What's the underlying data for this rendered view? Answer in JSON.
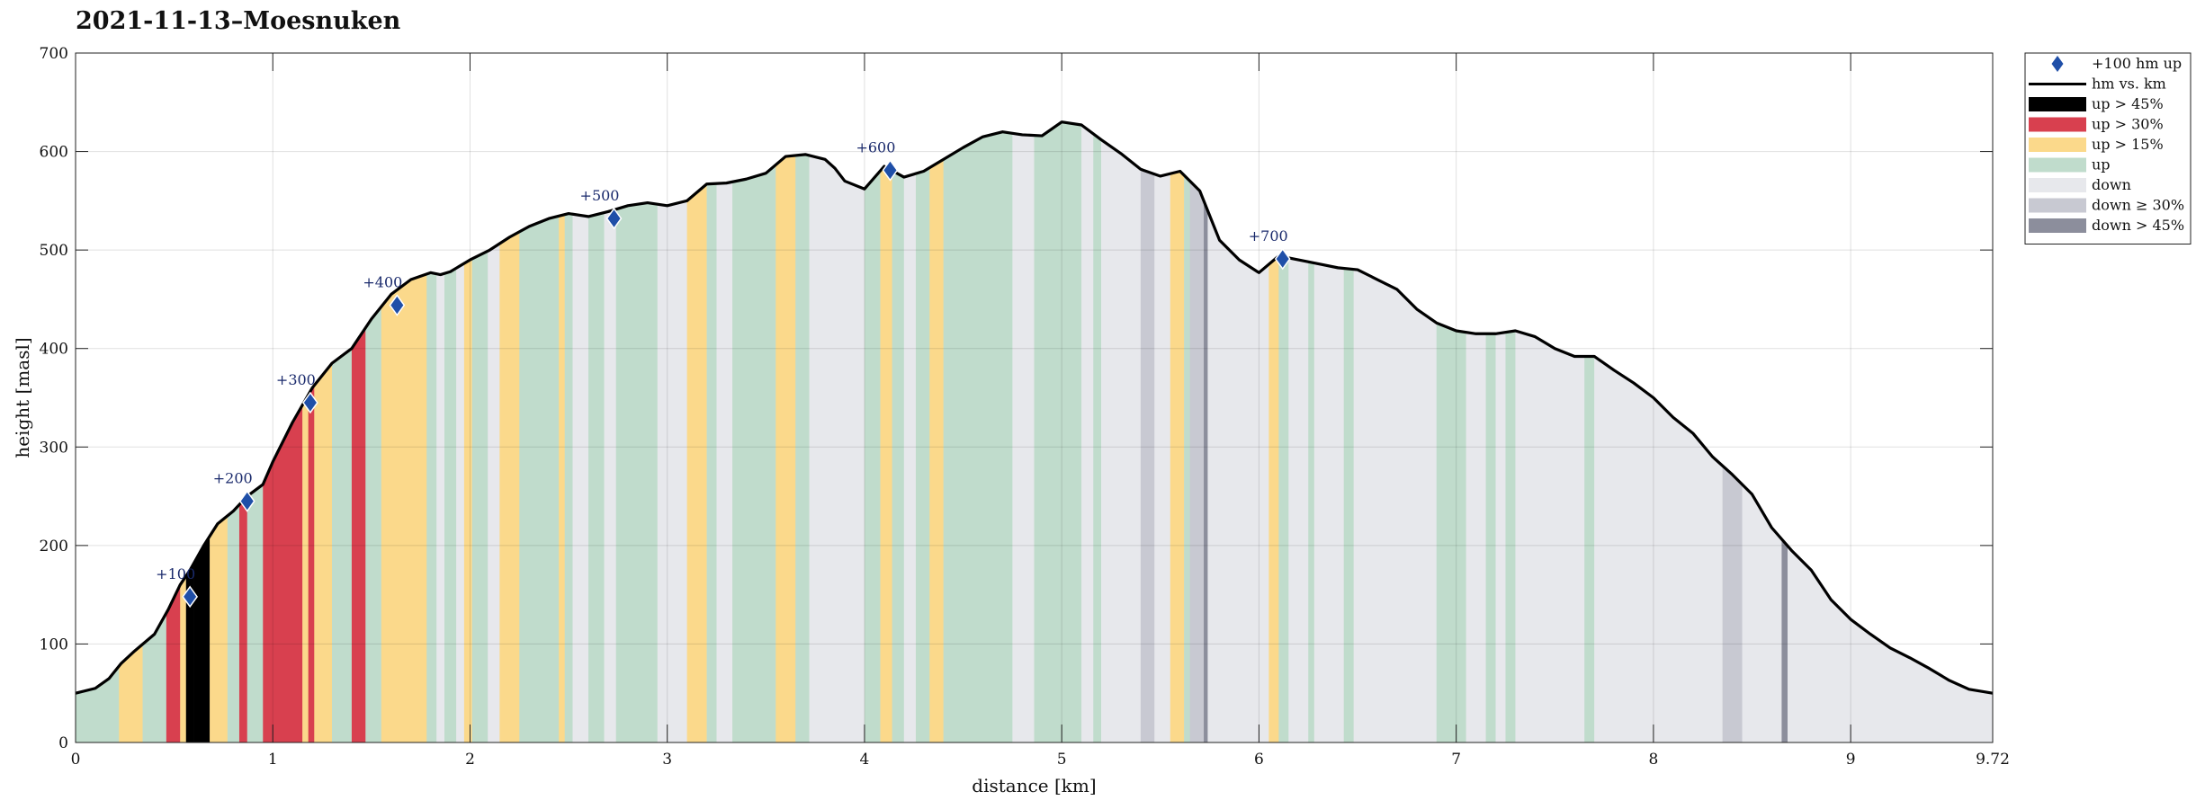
{
  "page": {
    "title": "2021-11-13–Moesnuken"
  },
  "chart_data": {
    "type": "area",
    "title": "2021-11-13–Moesnuken",
    "xlabel": "distance [km]",
    "ylabel": "height [masl]",
    "xlim": [
      0,
      9.72
    ],
    "ylim": [
      0,
      700
    ],
    "xticks": [
      0,
      1,
      2,
      3,
      4,
      5,
      6,
      7,
      8,
      9,
      9.72
    ],
    "xtick_labels": [
      "0",
      "1",
      "2",
      "3",
      "4",
      "5",
      "6",
      "7",
      "8",
      "9",
      "9.72"
    ],
    "yticks": [
      0,
      100,
      200,
      300,
      400,
      500,
      600,
      700
    ],
    "ytick_labels": [
      "0",
      "100",
      "200",
      "300",
      "400",
      "500",
      "600",
      "700"
    ],
    "grid": true,
    "legend_position": "outside-right-top",
    "legend": [
      {
        "label": "+100 hm up",
        "kind": "marker",
        "color": "#1f4fa8"
      },
      {
        "label": "hm vs. km",
        "kind": "line",
        "color": "#000000"
      },
      {
        "label": "up > 45%",
        "kind": "patch",
        "color": "#000000"
      },
      {
        "label": "up > 30%",
        "kind": "patch",
        "color": "#d8404f"
      },
      {
        "label": "up > 15%",
        "kind": "patch",
        "color": "#fbd98b"
      },
      {
        "label": "up",
        "kind": "patch",
        "color": "#c0dccc"
      },
      {
        "label": "down",
        "kind": "patch",
        "color": "#e7e8ec"
      },
      {
        "label": "down ≥ 30%",
        "kind": "patch",
        "color": "#c8c9d2"
      },
      {
        "label": "down > 45%",
        "kind": "patch",
        "color": "#8c8e9c"
      }
    ],
    "category_colors": {
      "up45": "#000000",
      "up30": "#d8404f",
      "up15": "#fbd98b",
      "up": "#c0dccc",
      "down": "#e7e8ec",
      "down30": "#c8c9d2",
      "down45": "#8c8e9c"
    },
    "profile": {
      "x": [
        0,
        0.1,
        0.17,
        0.23,
        0.3,
        0.4,
        0.47,
        0.53,
        0.58,
        0.65,
        0.72,
        0.8,
        0.87,
        0.95,
        1.0,
        1.1,
        1.2,
        1.3,
        1.4,
        1.5,
        1.6,
        1.7,
        1.8,
        1.85,
        1.9,
        2.0,
        2.1,
        2.2,
        2.3,
        2.4,
        2.5,
        2.6,
        2.7,
        2.8,
        2.9,
        3.0,
        3.1,
        3.2,
        3.3,
        3.4,
        3.5,
        3.6,
        3.7,
        3.8,
        3.85,
        3.9,
        4.0,
        4.1,
        4.2,
        4.3,
        4.4,
        4.5,
        4.6,
        4.7,
        4.8,
        4.9,
        5.0,
        5.1,
        5.2,
        5.3,
        5.4,
        5.5,
        5.6,
        5.7,
        5.8,
        5.9,
        6.0,
        6.1,
        6.2,
        6.3,
        6.4,
        6.5,
        6.6,
        6.7,
        6.8,
        6.9,
        7.0,
        7.1,
        7.2,
        7.3,
        7.4,
        7.5,
        7.6,
        7.7,
        7.8,
        7.9,
        8.0,
        8.1,
        8.2,
        8.3,
        8.4,
        8.5,
        8.6,
        8.7,
        8.8,
        8.9,
        9.0,
        9.1,
        9.2,
        9.3,
        9.4,
        9.5,
        9.6,
        9.72
      ],
      "y": [
        50,
        55,
        65,
        80,
        93,
        110,
        135,
        160,
        175,
        200,
        222,
        235,
        250,
        262,
        285,
        325,
        360,
        385,
        400,
        430,
        455,
        470,
        477,
        475,
        478,
        490,
        500,
        513,
        524,
        532,
        537,
        534,
        539,
        545,
        548,
        545,
        550,
        567,
        568,
        572,
        578,
        595,
        597,
        592,
        583,
        570,
        562,
        585,
        574,
        580,
        592,
        604,
        615,
        620,
        617,
        616,
        630,
        627,
        612,
        598,
        582,
        575,
        580,
        560,
        510,
        490,
        477,
        494,
        490,
        486,
        482,
        480,
        470,
        460,
        440,
        426,
        418,
        415,
        415,
        418,
        412,
        400,
        392,
        392,
        378,
        365,
        350,
        330,
        314,
        290,
        272,
        252,
        218,
        195,
        175,
        145,
        125,
        110,
        96,
        86,
        75,
        63,
        54,
        50
      ]
    },
    "segments": [
      [
        0.0,
        0.22,
        "up"
      ],
      [
        0.22,
        0.34,
        "up15"
      ],
      [
        0.34,
        0.46,
        "up"
      ],
      [
        0.46,
        0.53,
        "up30"
      ],
      [
        0.53,
        0.56,
        "up15"
      ],
      [
        0.56,
        0.6,
        "up45"
      ],
      [
        0.6,
        0.68,
        "up45"
      ],
      [
        0.68,
        0.77,
        "up15"
      ],
      [
        0.77,
        0.83,
        "up"
      ],
      [
        0.83,
        0.87,
        "up30"
      ],
      [
        0.87,
        0.95,
        "up"
      ],
      [
        0.95,
        1.15,
        "up30"
      ],
      [
        1.15,
        1.18,
        "up15"
      ],
      [
        1.18,
        1.21,
        "up30"
      ],
      [
        1.21,
        1.3,
        "up15"
      ],
      [
        1.3,
        1.4,
        "up"
      ],
      [
        1.4,
        1.47,
        "up30"
      ],
      [
        1.47,
        1.55,
        "up"
      ],
      [
        1.55,
        1.78,
        "up15"
      ],
      [
        1.78,
        1.83,
        "up"
      ],
      [
        1.83,
        1.87,
        "down"
      ],
      [
        1.87,
        1.93,
        "up"
      ],
      [
        1.93,
        1.97,
        "down"
      ],
      [
        1.97,
        2.01,
        "up15"
      ],
      [
        2.01,
        2.09,
        "up"
      ],
      [
        2.09,
        2.15,
        "down"
      ],
      [
        2.15,
        2.25,
        "up15"
      ],
      [
        2.25,
        2.45,
        "up"
      ],
      [
        2.45,
        2.48,
        "up15"
      ],
      [
        2.48,
        2.52,
        "up"
      ],
      [
        2.52,
        2.6,
        "down"
      ],
      [
        2.6,
        2.68,
        "up"
      ],
      [
        2.68,
        2.74,
        "down"
      ],
      [
        2.74,
        2.95,
        "up"
      ],
      [
        2.95,
        3.1,
        "down"
      ],
      [
        3.1,
        3.2,
        "up15"
      ],
      [
        3.2,
        3.25,
        "up"
      ],
      [
        3.25,
        3.33,
        "down"
      ],
      [
        3.33,
        3.55,
        "up"
      ],
      [
        3.55,
        3.65,
        "up15"
      ],
      [
        3.65,
        3.72,
        "up"
      ],
      [
        3.72,
        4.0,
        "down"
      ],
      [
        4.0,
        4.08,
        "up"
      ],
      [
        4.08,
        4.14,
        "up15"
      ],
      [
        4.14,
        4.2,
        "up"
      ],
      [
        4.2,
        4.26,
        "down"
      ],
      [
        4.26,
        4.33,
        "up"
      ],
      [
        4.33,
        4.4,
        "up15"
      ],
      [
        4.4,
        4.75,
        "up"
      ],
      [
        4.75,
        4.86,
        "down"
      ],
      [
        4.86,
        5.1,
        "up"
      ],
      [
        5.1,
        5.16,
        "down"
      ],
      [
        5.16,
        5.2,
        "up"
      ],
      [
        5.2,
        5.4,
        "down"
      ],
      [
        5.4,
        5.47,
        "down30"
      ],
      [
        5.47,
        5.55,
        "down"
      ],
      [
        5.55,
        5.62,
        "up15"
      ],
      [
        5.62,
        5.65,
        "up"
      ],
      [
        5.65,
        5.72,
        "down30"
      ],
      [
        5.72,
        5.74,
        "down45"
      ],
      [
        5.74,
        6.05,
        "down"
      ],
      [
        6.05,
        6.1,
        "up15"
      ],
      [
        6.1,
        6.15,
        "up"
      ],
      [
        6.15,
        6.25,
        "down"
      ],
      [
        6.25,
        6.28,
        "up"
      ],
      [
        6.28,
        6.43,
        "down"
      ],
      [
        6.43,
        6.48,
        "up"
      ],
      [
        6.48,
        6.9,
        "down"
      ],
      [
        6.9,
        7.05,
        "up"
      ],
      [
        7.05,
        7.15,
        "down"
      ],
      [
        7.15,
        7.2,
        "up"
      ],
      [
        7.2,
        7.25,
        "down"
      ],
      [
        7.25,
        7.3,
        "up"
      ],
      [
        7.3,
        7.65,
        "down"
      ],
      [
        7.65,
        7.7,
        "up"
      ],
      [
        7.7,
        8.35,
        "down"
      ],
      [
        8.35,
        8.45,
        "down30"
      ],
      [
        8.45,
        8.65,
        "down"
      ],
      [
        8.65,
        8.68,
        "down45"
      ],
      [
        8.68,
        9.72,
        "down"
      ]
    ],
    "annotations": [
      {
        "x": 0.58,
        "y": 148,
        "label": "+100"
      },
      {
        "x": 0.87,
        "y": 245,
        "label": "+200"
      },
      {
        "x": 1.19,
        "y": 345,
        "label": "+300"
      },
      {
        "x": 1.63,
        "y": 444,
        "label": "+400"
      },
      {
        "x": 2.73,
        "y": 532,
        "label": "+500"
      },
      {
        "x": 4.13,
        "y": 581,
        "label": "+600"
      },
      {
        "x": 6.12,
        "y": 491,
        "label": "+700"
      }
    ]
  }
}
